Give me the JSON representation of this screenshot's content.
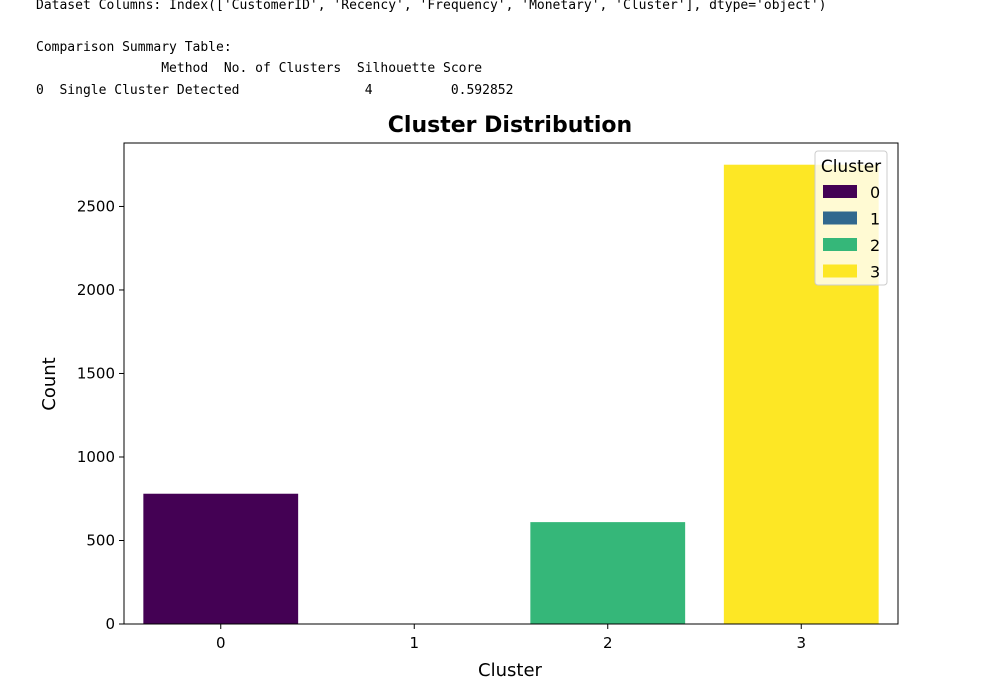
{
  "output": {
    "columns_line": "Dataset Columns: Index(['CustomerID', 'Recency', 'Frequency', 'Monetary', 'Cluster'], dtype='object')",
    "table_title": "Comparison Summary Table:",
    "table_header": "                Method  No. of Clusters  Silhouette Score",
    "table_row": "0  Single Cluster Detected                4          0.592852"
  },
  "chart_data": {
    "type": "bar",
    "title": "Cluster Distribution",
    "xlabel": "Cluster",
    "ylabel": "Count",
    "categories": [
      "0",
      "1",
      "2",
      "3"
    ],
    "values": [
      780,
      0,
      610,
      2750
    ],
    "colors": [
      "#440154",
      "#31688e",
      "#35b779",
      "#fde725"
    ],
    "ylim": [
      0,
      2880
    ],
    "yticks": [
      0,
      500,
      1000,
      1500,
      2000,
      2500
    ],
    "grid": false,
    "legend": {
      "title": "Cluster",
      "placement": "top-right",
      "entries": [
        "0",
        "1",
        "2",
        "3"
      ]
    }
  }
}
